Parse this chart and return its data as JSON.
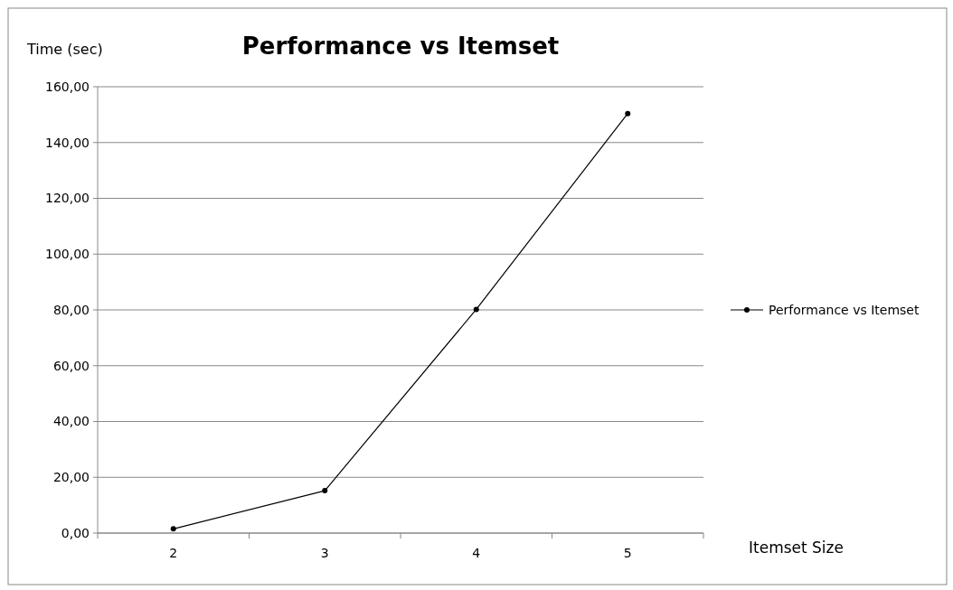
{
  "chart_data": {
    "type": "line",
    "title": "Performance vs Itemset",
    "xlabel": "Itemset Size",
    "ylabel": "Time (sec)",
    "categories": [
      "2",
      "3",
      "4",
      "5"
    ],
    "series": [
      {
        "name": "Performance vs Itemset",
        "color": "#000000",
        "values": [
          1.5,
          15.2,
          80.2,
          150.4
        ]
      }
    ],
    "ylim": [
      0,
      160
    ],
    "yticks": [
      {
        "value": 0,
        "label": "0,00"
      },
      {
        "value": 20,
        "label": "20,00"
      },
      {
        "value": 40,
        "label": "40,00"
      },
      {
        "value": 60,
        "label": "60,00"
      },
      {
        "value": 80,
        "label": "80,00"
      },
      {
        "value": 100,
        "label": "100,00"
      },
      {
        "value": 120,
        "label": "120,00"
      },
      {
        "value": 140,
        "label": "140,00"
      },
      {
        "value": 160,
        "label": "160,00"
      }
    ],
    "grid": "y",
    "legend": "right",
    "marker": "circle",
    "line_style": "solid"
  }
}
